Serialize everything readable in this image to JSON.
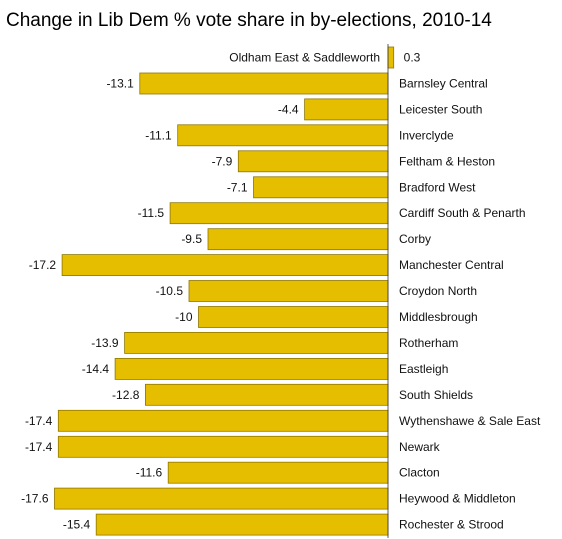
{
  "chart_data": {
    "type": "bar",
    "orientation": "horizontal",
    "title": "Change in Lib Dem % vote share in by-elections, 2010-14",
    "xlabel": "",
    "ylabel": "",
    "xlim": [
      -18,
      0.5
    ],
    "grid": false,
    "bar_color": "#E6BE00",
    "bar_edge_color": "#8F7700",
    "categories": [
      "Oldham East & Saddleworth",
      "Barnsley Central",
      "Leicester South",
      "Inverclyde",
      "Feltham & Heston",
      "Bradford West",
      "Cardiff South & Penarth",
      "Corby",
      "Manchester Central",
      "Croydon North",
      "Middlesbrough",
      "Rotherham",
      "Eastleigh",
      "South Shields",
      "Wythenshawe & Sale East",
      "Newark",
      "Clacton",
      "Heywood & Middleton",
      "Rochester & Strood"
    ],
    "values": [
      0.3,
      -13.1,
      -4.4,
      -11.1,
      -7.9,
      -7.1,
      -11.5,
      -9.5,
      -17.2,
      -10.5,
      -10,
      -13.9,
      -14.4,
      -12.8,
      -17.4,
      -17.4,
      -11.6,
      -17.6,
      -15.4
    ],
    "value_labels": [
      "0.3",
      "-13.1",
      "-4.4",
      "-11.1",
      "-7.9",
      "-7.1",
      "-11.5",
      "-9.5",
      "-17.2",
      "-10.5",
      "-10",
      "-13.9",
      "-14.4",
      "-12.8",
      "-17.4",
      "-17.4",
      "-11.6",
      "-17.6",
      "-15.4"
    ]
  }
}
